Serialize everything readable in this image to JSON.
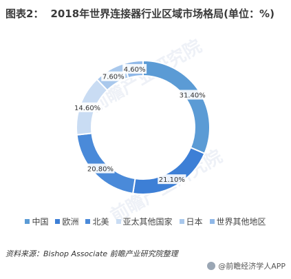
{
  "header": {
    "title_label": "图表2：",
    "title_text": "2018年世界连接器行业区域市场格局(单位：%)"
  },
  "chart_data": {
    "type": "pie",
    "donut": true,
    "categories": [
      "中国",
      "欧洲",
      "北美",
      "亚太其他国家",
      "日本",
      "世界其他地区"
    ],
    "values": [
      31.4,
      21.1,
      20.8,
      14.6,
      7.6,
      4.6
    ],
    "data_labels": [
      "31.40%",
      "21.10%",
      "20.80%",
      "14.60%",
      "7.60%",
      "4.60%"
    ],
    "colors": [
      "#5b9bd5",
      "#3d7fd6",
      "#4a8ad9",
      "#c9dcf3",
      "#a9c8ec",
      "#8fb8e8"
    ],
    "legend_position": "bottom"
  },
  "footer": {
    "source_text": "资料来源：Bishop Associate 前瞻产业研究院整理",
    "brand_text": "@前瞻经济学人APP",
    "watermark_text": "前瞻产业研究院"
  }
}
